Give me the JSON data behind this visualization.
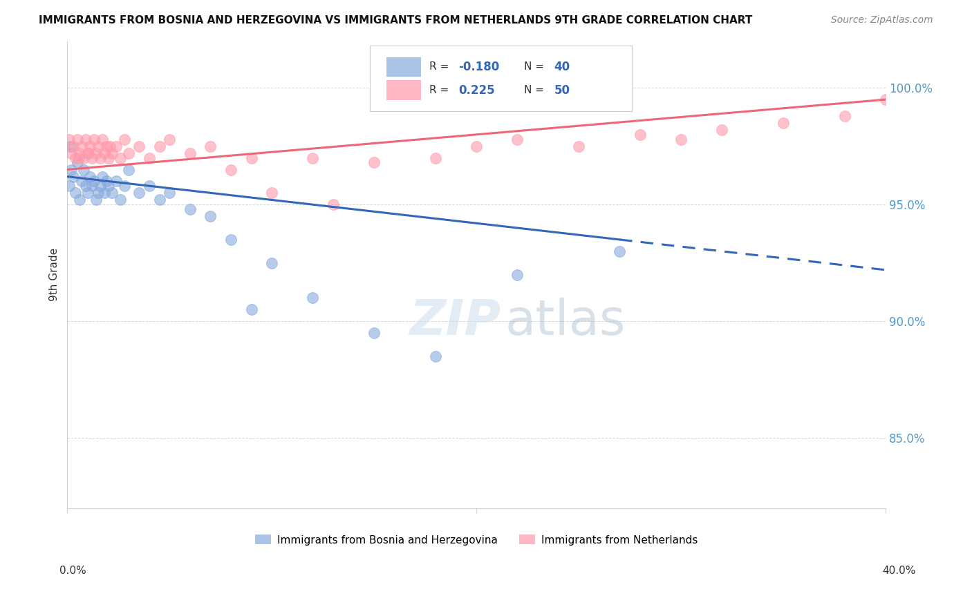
{
  "title": "IMMIGRANTS FROM BOSNIA AND HERZEGOVINA VS IMMIGRANTS FROM NETHERLANDS 9TH GRADE CORRELATION CHART",
  "source": "Source: ZipAtlas.com",
  "ylabel": "9th Grade",
  "xlim": [
    0.0,
    40.0
  ],
  "ylim": [
    82.0,
    102.0
  ],
  "yticks": [
    85.0,
    90.0,
    95.0,
    100.0
  ],
  "ytick_labels": [
    "85.0%",
    "90.0%",
    "95.0%",
    "100.0%"
  ],
  "watermark_zip": "ZIP",
  "watermark_atlas": "atlas",
  "color_blue": "#88AADD",
  "color_pink": "#FF99AA",
  "color_blue_line": "#3366BB",
  "color_pink_line": "#EE6677",
  "blue_r": "-0.180",
  "blue_n": "40",
  "pink_r": "0.225",
  "pink_n": "50",
  "blue_scatter_x": [
    0.1,
    0.2,
    0.3,
    0.4,
    0.5,
    0.6,
    0.7,
    0.8,
    0.9,
    1.0,
    1.1,
    1.2,
    1.3,
    1.4,
    1.5,
    1.6,
    1.7,
    1.8,
    1.9,
    2.0,
    2.2,
    2.4,
    2.6,
    2.8,
    3.0,
    3.5,
    4.0,
    4.5,
    5.0,
    6.0,
    7.0,
    8.0,
    9.0,
    10.0,
    12.0,
    15.0,
    18.0,
    22.0,
    27.0,
    0.15
  ],
  "blue_scatter_y": [
    95.8,
    96.5,
    96.2,
    95.5,
    96.8,
    95.2,
    96.0,
    96.5,
    95.8,
    95.5,
    96.2,
    95.8,
    96.0,
    95.2,
    95.5,
    95.8,
    96.2,
    95.5,
    96.0,
    95.8,
    95.5,
    96.0,
    95.2,
    95.8,
    96.5,
    95.5,
    95.8,
    95.2,
    95.5,
    94.8,
    94.5,
    93.5,
    90.5,
    92.5,
    91.0,
    89.5,
    88.5,
    92.0,
    93.0,
    97.5
  ],
  "pink_scatter_x": [
    0.1,
    0.2,
    0.3,
    0.4,
    0.5,
    0.6,
    0.7,
    0.8,
    0.9,
    1.0,
    1.1,
    1.2,
    1.3,
    1.4,
    1.5,
    1.6,
    1.7,
    1.8,
    1.9,
    2.0,
    2.2,
    2.4,
    2.6,
    2.8,
    3.0,
    3.5,
    4.0,
    4.5,
    5.0,
    6.0,
    7.0,
    8.0,
    9.0,
    10.0,
    12.0,
    13.0,
    15.0,
    18.0,
    20.0,
    22.0,
    25.0,
    28.0,
    30.0,
    32.0,
    35.0,
    38.0,
    40.0,
    2.1,
    1.05,
    0.55
  ],
  "pink_scatter_y": [
    97.8,
    97.2,
    97.5,
    97.0,
    97.8,
    97.2,
    97.5,
    97.0,
    97.8,
    97.2,
    97.5,
    97.0,
    97.8,
    97.2,
    97.5,
    97.0,
    97.8,
    97.2,
    97.5,
    97.0,
    97.2,
    97.5,
    97.0,
    97.8,
    97.2,
    97.5,
    97.0,
    97.5,
    97.8,
    97.2,
    97.5,
    96.5,
    97.0,
    95.5,
    97.0,
    95.0,
    96.8,
    97.0,
    97.5,
    97.8,
    97.5,
    98.0,
    97.8,
    98.2,
    98.5,
    98.8,
    99.5,
    97.5,
    97.2,
    97.0
  ],
  "blue_line_x0": 0.0,
  "blue_line_x1": 27.0,
  "blue_line_x2": 40.0,
  "blue_line_y_at_0": 96.2,
  "blue_line_y_at_27": 93.5,
  "blue_line_y_at_40": 92.2,
  "pink_line_x0": 0.0,
  "pink_line_x1": 40.0,
  "pink_line_y_at_0": 96.5,
  "pink_line_y_at_40": 99.5
}
